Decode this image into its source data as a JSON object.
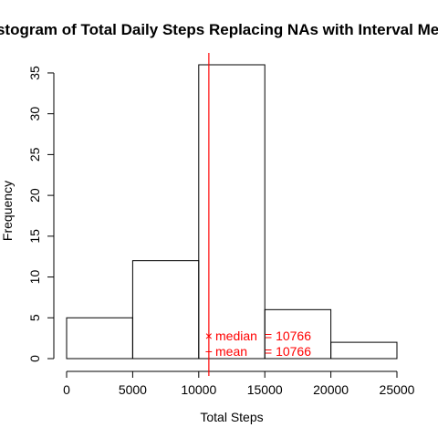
{
  "chart_data": {
    "type": "histogram",
    "title": "Histogram of Total Daily Steps Replacing NAs with Interval Mean",
    "xlabel": "Total Steps",
    "ylabel": "Frequency",
    "bins": [
      {
        "from": 0,
        "to": 5000,
        "count": 5
      },
      {
        "from": 5000,
        "to": 10000,
        "count": 12
      },
      {
        "from": 10000,
        "to": 15000,
        "count": 36
      },
      {
        "from": 15000,
        "to": 20000,
        "count": 6
      },
      {
        "from": 20000,
        "to": 25000,
        "count": 2
      }
    ],
    "xlim": [
      0,
      25000
    ],
    "ylim": [
      0,
      36
    ],
    "x_ticks": [
      "0",
      "5000",
      "10000",
      "15000",
      "20000",
      "25000"
    ],
    "y_ticks": [
      "0",
      "5",
      "10",
      "15",
      "20",
      "25",
      "30",
      "35"
    ],
    "mean": 10766,
    "median": 10766,
    "vline_color": "#ff0000",
    "legend": [
      {
        "symbol": "×",
        "label": "median",
        "value": "= 10766"
      },
      {
        "symbol": "−",
        "label": "mean",
        "value": "= 10766"
      }
    ],
    "legend_position": "bottom, just right of the mean line",
    "grid": false
  }
}
